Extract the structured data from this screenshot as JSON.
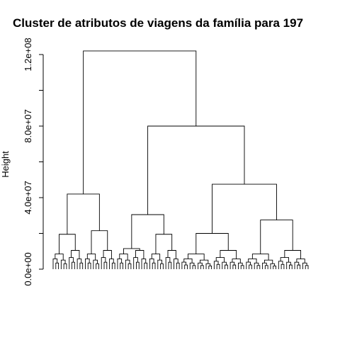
{
  "chart_data": {
    "type": "dendrogram",
    "title": "Cluster de atributos de viagens da família para 197",
    "xlabel": "",
    "ylabel": "Height",
    "ylim": [
      0,
      130000000
    ],
    "y_ticks": [
      0,
      20000000,
      40000000,
      60000000,
      80000000,
      100000000,
      120000000
    ],
    "y_tick_labels": [
      "0.0e+00",
      "",
      "4.0e+07",
      "",
      "8.0e+07",
      "",
      "1.2e+08"
    ],
    "leaf_count": 96,
    "merges": [
      {
        "id": "root",
        "height": 122000000
      },
      {
        "id": "left-main",
        "height": 42000000
      },
      {
        "id": "right-main",
        "height": 80000000
      },
      {
        "id": "right-center",
        "height": 30500000
      },
      {
        "id": "right-right",
        "height": 47500000
      },
      {
        "id": "left-a",
        "height": 19500000
      },
      {
        "id": "left-b",
        "height": 21500000
      },
      {
        "id": "rc-a",
        "height": 11500000
      },
      {
        "id": "rc-b",
        "height": 19500000
      },
      {
        "id": "rr-a",
        "height": 20000000
      },
      {
        "id": "rr-b",
        "height": 27500000
      }
    ]
  }
}
